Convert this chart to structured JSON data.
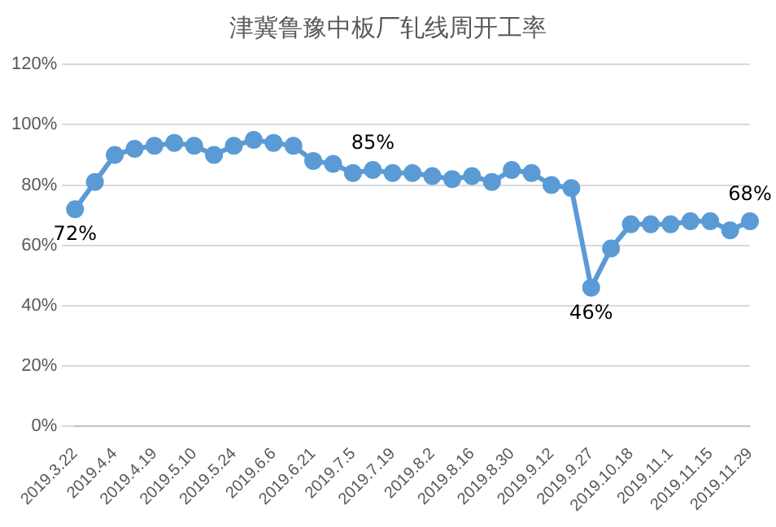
{
  "chart_data": {
    "type": "line",
    "title": "津冀鲁豫中板厂轧线周开工率",
    "categories": [
      "2019.3.22",
      null,
      "2019.4.4",
      null,
      "2019.4.19",
      null,
      "2019.5.10",
      null,
      "2019.5.24",
      null,
      "2019.6.6",
      null,
      "2019.6.21",
      null,
      "2019.7.5",
      null,
      "2019.7.19",
      null,
      "2019.8.2",
      null,
      "2019.8.16",
      null,
      "2019.8.30",
      null,
      "2019.9.12",
      null,
      "2019.9.27",
      null,
      "2019.10.18",
      null,
      "2019.11.1",
      null,
      "2019.11.15",
      null,
      "2019.11.29"
    ],
    "series": [
      {
        "color": "#5b9bd5",
        "values": [
          72,
          81,
          90,
          92,
          93,
          94,
          93,
          90,
          93,
          95,
          94,
          93,
          88,
          87,
          84,
          85,
          84,
          84,
          83,
          82,
          83,
          81,
          85,
          84,
          80,
          79,
          46,
          59,
          67,
          67,
          67,
          68,
          68,
          65,
          68
        ],
        "value_labels": [
          "72%",
          null,
          null,
          null,
          null,
          null,
          null,
          null,
          null,
          null,
          null,
          null,
          null,
          null,
          null,
          "85%",
          null,
          null,
          null,
          null,
          null,
          null,
          null,
          null,
          null,
          null,
          "46%",
          null,
          null,
          null,
          null,
          null,
          null,
          null,
          "68%"
        ]
      }
    ],
    "ylim": [
      0,
      120
    ],
    "yticks": [
      {
        "value": 0,
        "label": "0%"
      },
      {
        "value": 20,
        "label": "20%"
      },
      {
        "value": 40,
        "label": "40%"
      },
      {
        "value": 60,
        "label": "60%"
      },
      {
        "value": 80,
        "label": "80%"
      },
      {
        "value": 100,
        "label": "100%"
      },
      {
        "value": 120,
        "label": "120%"
      }
    ],
    "grid": "y",
    "marker": "circle",
    "line_style": "solid",
    "legend": false
  }
}
